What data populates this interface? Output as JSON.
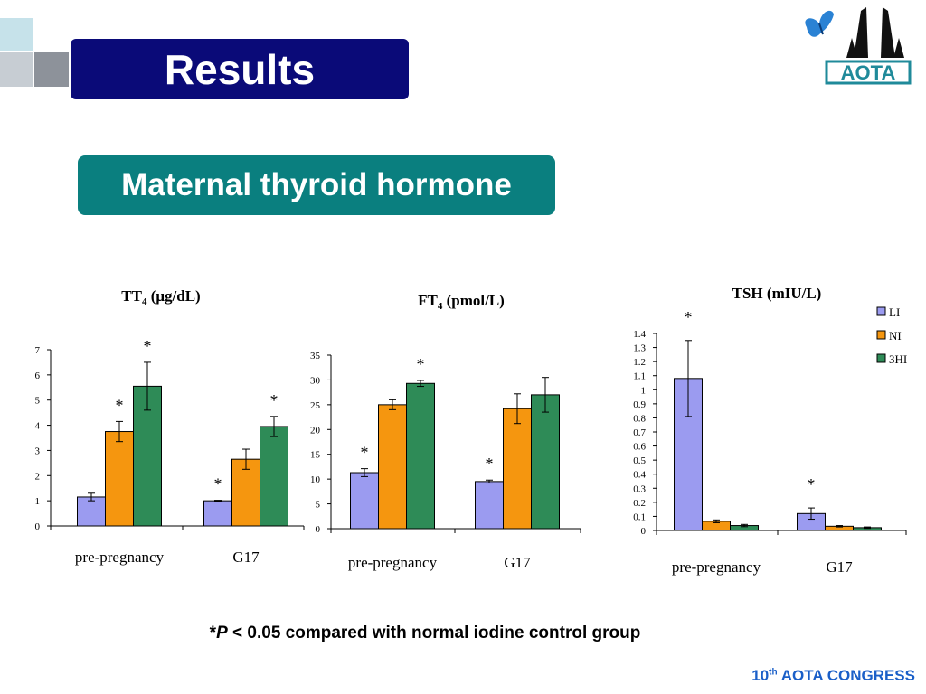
{
  "slide": {
    "title": "Results",
    "subtitle": "Maternal thyroid hormone",
    "footnote": {
      "star": "*",
      "p": "P",
      "text": " < 0.05 compared with normal iodine control group"
    },
    "footer": {
      "num": "10",
      "sup": "th",
      "text": " AOTA CONGRESS"
    },
    "logo_text": "AOTA",
    "colors": {
      "title_bg": "#0a0a78",
      "subtitle_bg": "#0a7f7f",
      "footer": "#1a5fc8",
      "LI": "#9b9bf0",
      "NI": "#f5960f",
      "3HI": "#2e8b57"
    }
  },
  "chart_data": [
    {
      "type": "bar",
      "title": "TT4 (μg/dL)",
      "title_main": "TT",
      "title_sub": "4",
      "title_unit": " (μg/dL)",
      "categories": [
        "pre-pregnancy",
        "G17"
      ],
      "ylim": [
        0,
        7
      ],
      "yticks": [
        "0",
        "1",
        "2",
        "3",
        "4",
        "5",
        "6",
        "7"
      ],
      "series": [
        {
          "name": "LI",
          "values": [
            1.15,
            1.0
          ],
          "errors": [
            0.15,
            0.02
          ]
        },
        {
          "name": "NI",
          "values": [
            3.75,
            2.65
          ],
          "errors": [
            0.4,
            0.4
          ]
        },
        {
          "name": "3HI",
          "values": [
            5.55,
            3.95
          ],
          "errors": [
            0.95,
            0.4
          ]
        }
      ],
      "significance": [
        [
          1,
          0
        ],
        [
          2,
          0
        ],
        [
          0,
          1
        ],
        [
          2,
          1
        ]
      ]
    },
    {
      "type": "bar",
      "title": "FT4 (pmol/L)",
      "title_main": "FT",
      "title_sub": "4",
      "title_unit": " (pmol/L)",
      "categories": [
        "pre-pregnancy",
        "G17"
      ],
      "ylim": [
        0,
        35
      ],
      "yticks": [
        "0",
        "5",
        "10",
        "15",
        "20",
        "25",
        "30",
        "35"
      ],
      "series": [
        {
          "name": "LI",
          "values": [
            11.3,
            9.5
          ],
          "errors": [
            0.8,
            0.3
          ]
        },
        {
          "name": "NI",
          "values": [
            25.0,
            24.2
          ],
          "errors": [
            1.0,
            3.0
          ]
        },
        {
          "name": "3HI",
          "values": [
            29.3,
            27.0
          ],
          "errors": [
            0.6,
            3.5
          ]
        }
      ],
      "significance": [
        [
          0,
          0
        ],
        [
          2,
          0
        ],
        [
          0,
          1
        ]
      ]
    },
    {
      "type": "bar",
      "title": "TSH (mIU/L)",
      "title_main": "TSH (mIU/L)",
      "title_sub": "",
      "title_unit": "",
      "categories": [
        "pre-pregnancy",
        "G17"
      ],
      "ylim": [
        0,
        1.4
      ],
      "yticks": [
        "0",
        "0.1",
        "0.2",
        "0.3",
        "0.4",
        "0.5",
        "0.6",
        "0.7",
        "0.8",
        "0.9",
        "1",
        "1.1",
        "1.2",
        "1.3",
        "1.4"
      ],
      "legend": [
        "LI",
        "NI",
        "3HI"
      ],
      "legend_position": "top-right",
      "series": [
        {
          "name": "LI",
          "values": [
            1.08,
            0.12
          ],
          "errors": [
            0.27,
            0.04
          ]
        },
        {
          "name": "NI",
          "values": [
            0.065,
            0.03
          ],
          "errors": [
            0.01,
            0.005
          ]
        },
        {
          "name": "3HI",
          "values": [
            0.035,
            0.02
          ],
          "errors": [
            0.008,
            0.005
          ]
        }
      ],
      "significance": [
        [
          0,
          0
        ],
        [
          0,
          1
        ]
      ]
    }
  ]
}
